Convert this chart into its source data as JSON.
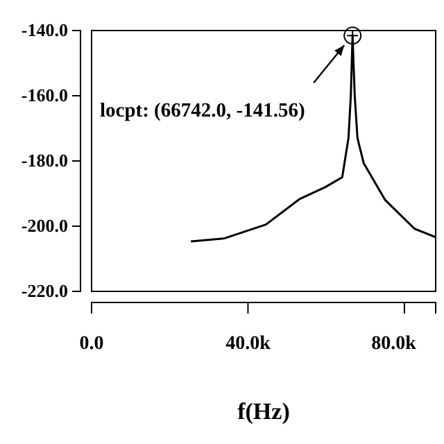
{
  "chart_data": {
    "type": "line",
    "xlabel": "f(Hz)",
    "x": [
      25400,
      33800,
      44600,
      53300,
      59800,
      64100,
      65700,
      66300,
      66742,
      67300,
      68000,
      69600,
      75100,
      82600,
      88000
    ],
    "series": [
      {
        "color": "#000000",
        "values": [
          -204.7,
          -203.8,
          -199.5,
          -191.6,
          -188,
          -185,
          -173,
          -160,
          -141.56,
          -160,
          -173,
          -180.7,
          -192,
          -200.8,
          -203.4
        ]
      }
    ],
    "xlim": [
      0,
      88000
    ],
    "xticks": [
      {
        "value": 0,
        "label": "0.0"
      },
      {
        "value": 40000,
        "label": "40.0k"
      },
      {
        "value": 80000,
        "label": "80.0k"
      }
    ],
    "ylim": [
      -220,
      -140
    ],
    "yticks": [
      {
        "value": -140,
        "label": "-140.0"
      },
      {
        "value": -160,
        "label": "-160.0"
      },
      {
        "value": -180,
        "label": "-180.0"
      },
      {
        "value": -200,
        "label": "-200.0"
      },
      {
        "value": -220,
        "label": "-220.0"
      }
    ],
    "annotations": [
      "locpt: (66742.0, -141.56)"
    ],
    "grid": false,
    "marker": "none",
    "line_style": "solid"
  }
}
